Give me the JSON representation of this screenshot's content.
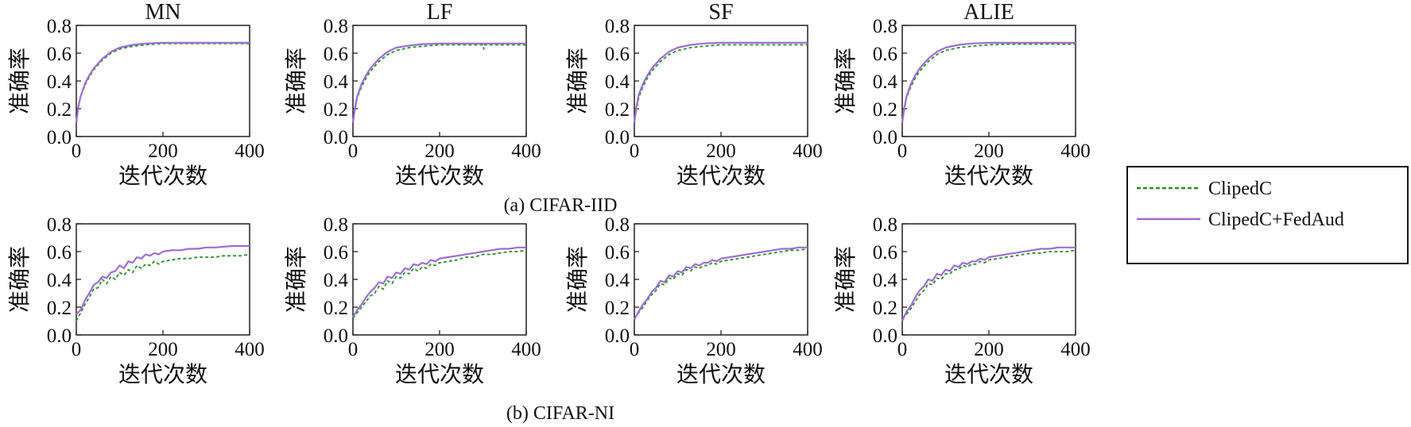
{
  "figure": {
    "captions": [
      "(a) CIFAR-IID",
      "(b) CIFAR-NI"
    ],
    "legend": [
      {
        "label": "ClipedC",
        "color": "#2e8b2e",
        "dash": "dashed"
      },
      {
        "label": "ClipedC+FedAud",
        "color": "#9b6fce",
        "dash": "solid"
      }
    ]
  },
  "chart_data": [
    {
      "type": "line",
      "group": "(a) CIFAR-IID",
      "title": "MN",
      "xlabel": "迭代次数",
      "ylabel": "准确率",
      "xlim": [
        0,
        400
      ],
      "ylim": [
        0,
        0.8
      ],
      "xticks": [
        "0",
        "200",
        "400"
      ],
      "yticks": [
        "0.0",
        "0.2",
        "0.4",
        "0.6",
        "0.8"
      ],
      "x": [
        0,
        5,
        10,
        20,
        30,
        40,
        60,
        80,
        100,
        130,
        160,
        200,
        250,
        300,
        350,
        400
      ],
      "series": [
        {
          "name": "ClipedC",
          "values": [
            0.1,
            0.21,
            0.29,
            0.37,
            0.43,
            0.48,
            0.55,
            0.6,
            0.63,
            0.65,
            0.66,
            0.67,
            0.67,
            0.67,
            0.67,
            0.67
          ]
        },
        {
          "name": "ClipedC+FedAud",
          "values": [
            0.1,
            0.22,
            0.29,
            0.38,
            0.44,
            0.49,
            0.56,
            0.61,
            0.64,
            0.66,
            0.67,
            0.675,
            0.675,
            0.675,
            0.675,
            0.675
          ]
        }
      ]
    },
    {
      "type": "line",
      "group": "(a) CIFAR-IID",
      "title": "LF",
      "xlabel": "迭代次数",
      "ylabel": "准确率",
      "xlim": [
        0,
        400
      ],
      "ylim": [
        0,
        0.8
      ],
      "xticks": [
        "0",
        "200",
        "400"
      ],
      "yticks": [
        "0.0",
        "0.2",
        "0.4",
        "0.6",
        "0.8"
      ],
      "x": [
        0,
        5,
        10,
        20,
        30,
        40,
        60,
        80,
        100,
        130,
        160,
        200,
        250,
        300,
        302,
        304,
        350,
        400
      ],
      "series": [
        {
          "name": "ClipedC",
          "values": [
            0.1,
            0.2,
            0.28,
            0.36,
            0.42,
            0.47,
            0.54,
            0.59,
            0.62,
            0.64,
            0.65,
            0.66,
            0.66,
            0.66,
            0.63,
            0.66,
            0.66,
            0.66
          ]
        },
        {
          "name": "ClipedC+FedAud",
          "values": [
            0.1,
            0.21,
            0.29,
            0.38,
            0.44,
            0.49,
            0.56,
            0.61,
            0.64,
            0.655,
            0.665,
            0.67,
            0.67,
            0.67,
            0.67,
            0.67,
            0.67,
            0.67
          ]
        }
      ]
    },
    {
      "type": "line",
      "group": "(a) CIFAR-IID",
      "title": "SF",
      "xlabel": "迭代次数",
      "ylabel": "准确率",
      "xlim": [
        0,
        400
      ],
      "ylim": [
        0,
        0.8
      ],
      "xticks": [
        "0",
        "200",
        "400"
      ],
      "yticks": [
        "0.0",
        "0.2",
        "0.4",
        "0.6",
        "0.8"
      ],
      "x": [
        0,
        5,
        10,
        20,
        30,
        40,
        60,
        80,
        100,
        130,
        160,
        200,
        250,
        300,
        350,
        400
      ],
      "series": [
        {
          "name": "ClipedC",
          "values": [
            0.1,
            0.2,
            0.28,
            0.36,
            0.42,
            0.47,
            0.54,
            0.59,
            0.62,
            0.64,
            0.65,
            0.66,
            0.66,
            0.66,
            0.66,
            0.66
          ]
        },
        {
          "name": "ClipedC+FedAud",
          "values": [
            0.1,
            0.22,
            0.3,
            0.38,
            0.44,
            0.49,
            0.56,
            0.61,
            0.64,
            0.66,
            0.67,
            0.675,
            0.675,
            0.675,
            0.675,
            0.675
          ]
        }
      ]
    },
    {
      "type": "line",
      "group": "(a) CIFAR-IID",
      "title": "ALIE",
      "xlabel": "迭代次数",
      "ylabel": "准确率",
      "xlim": [
        0,
        400
      ],
      "ylim": [
        0,
        0.8
      ],
      "xticks": [
        "0",
        "200",
        "400"
      ],
      "yticks": [
        "0.0",
        "0.2",
        "0.4",
        "0.6",
        "0.8"
      ],
      "x": [
        0,
        5,
        10,
        20,
        30,
        40,
        60,
        80,
        100,
        130,
        160,
        200,
        250,
        300,
        350,
        400
      ],
      "series": [
        {
          "name": "ClipedC",
          "values": [
            0.1,
            0.2,
            0.28,
            0.36,
            0.42,
            0.47,
            0.54,
            0.59,
            0.62,
            0.64,
            0.65,
            0.66,
            0.665,
            0.665,
            0.665,
            0.665
          ]
        },
        {
          "name": "ClipedC+FedAud",
          "values": [
            0.1,
            0.21,
            0.29,
            0.38,
            0.44,
            0.49,
            0.56,
            0.61,
            0.64,
            0.66,
            0.67,
            0.675,
            0.675,
            0.675,
            0.675,
            0.675
          ]
        }
      ]
    },
    {
      "type": "line",
      "group": "(b) CIFAR-NI",
      "title": "",
      "xlabel": "迭代次数",
      "ylabel": "准确率",
      "xlim": [
        0,
        400
      ],
      "ylim": [
        0,
        0.8
      ],
      "xticks": [
        "0",
        "200",
        "400"
      ],
      "yticks": [
        "0.0",
        "0.2",
        "0.4",
        "0.6",
        "0.8"
      ],
      "x": [
        0,
        10,
        20,
        30,
        40,
        50,
        60,
        70,
        80,
        90,
        100,
        110,
        120,
        130,
        140,
        150,
        160,
        170,
        180,
        190,
        200,
        220,
        240,
        260,
        280,
        300,
        320,
        340,
        360,
        380,
        400
      ],
      "series": [
        {
          "name": "ClipedC",
          "values": [
            0.1,
            0.16,
            0.22,
            0.27,
            0.33,
            0.34,
            0.4,
            0.37,
            0.42,
            0.4,
            0.45,
            0.43,
            0.47,
            0.45,
            0.5,
            0.48,
            0.51,
            0.5,
            0.53,
            0.51,
            0.53,
            0.54,
            0.55,
            0.55,
            0.56,
            0.56,
            0.56,
            0.57,
            0.57,
            0.57,
            0.58
          ]
        },
        {
          "name": "ClipedC+FedAud",
          "values": [
            0.15,
            0.18,
            0.25,
            0.3,
            0.36,
            0.38,
            0.42,
            0.41,
            0.45,
            0.46,
            0.5,
            0.48,
            0.53,
            0.52,
            0.56,
            0.55,
            0.58,
            0.57,
            0.59,
            0.58,
            0.6,
            0.61,
            0.61,
            0.62,
            0.62,
            0.63,
            0.63,
            0.635,
            0.64,
            0.64,
            0.64
          ]
        }
      ]
    },
    {
      "type": "line",
      "group": "(b) CIFAR-NI",
      "title": "",
      "xlabel": "迭代次数",
      "ylabel": "准确率",
      "xlim": [
        0,
        400
      ],
      "ylim": [
        0,
        0.8
      ],
      "xticks": [
        "0",
        "200",
        "400"
      ],
      "yticks": [
        "0.0",
        "0.2",
        "0.4",
        "0.6",
        "0.8"
      ],
      "x": [
        0,
        10,
        20,
        30,
        40,
        50,
        60,
        70,
        80,
        90,
        100,
        110,
        120,
        130,
        140,
        150,
        160,
        170,
        180,
        190,
        200,
        220,
        240,
        260,
        280,
        300,
        320,
        340,
        360,
        380,
        400
      ],
      "series": [
        {
          "name": "ClipedC",
          "values": [
            0.12,
            0.16,
            0.2,
            0.24,
            0.28,
            0.3,
            0.35,
            0.33,
            0.39,
            0.37,
            0.42,
            0.41,
            0.45,
            0.44,
            0.48,
            0.46,
            0.49,
            0.48,
            0.51,
            0.5,
            0.52,
            0.53,
            0.54,
            0.56,
            0.56,
            0.58,
            0.58,
            0.59,
            0.6,
            0.6,
            0.61
          ]
        },
        {
          "name": "ClipedC+FedAud",
          "values": [
            0.13,
            0.18,
            0.22,
            0.27,
            0.31,
            0.34,
            0.38,
            0.37,
            0.42,
            0.41,
            0.45,
            0.44,
            0.48,
            0.47,
            0.51,
            0.5,
            0.52,
            0.51,
            0.54,
            0.53,
            0.55,
            0.56,
            0.57,
            0.58,
            0.59,
            0.6,
            0.61,
            0.62,
            0.62,
            0.63,
            0.63
          ]
        }
      ]
    },
    {
      "type": "line",
      "group": "(b) CIFAR-NI",
      "title": "",
      "xlabel": "迭代次数",
      "ylabel": "准确率",
      "xlim": [
        0,
        400
      ],
      "ylim": [
        0,
        0.8
      ],
      "xticks": [
        "0",
        "200",
        "400"
      ],
      "yticks": [
        "0.0",
        "0.2",
        "0.4",
        "0.6",
        "0.8"
      ],
      "x": [
        0,
        10,
        20,
        30,
        40,
        50,
        60,
        70,
        80,
        90,
        100,
        110,
        120,
        130,
        140,
        150,
        160,
        170,
        180,
        190,
        200,
        220,
        240,
        260,
        280,
        300,
        320,
        340,
        360,
        380,
        400
      ],
      "series": [
        {
          "name": "ClipedC",
          "values": [
            0.12,
            0.16,
            0.2,
            0.25,
            0.29,
            0.32,
            0.37,
            0.36,
            0.41,
            0.4,
            0.44,
            0.43,
            0.47,
            0.46,
            0.49,
            0.48,
            0.5,
            0.5,
            0.52,
            0.51,
            0.53,
            0.54,
            0.55,
            0.56,
            0.57,
            0.58,
            0.59,
            0.6,
            0.61,
            0.61,
            0.62
          ]
        },
        {
          "name": "ClipedC+FedAud",
          "values": [
            0.11,
            0.17,
            0.22,
            0.26,
            0.31,
            0.34,
            0.39,
            0.38,
            0.43,
            0.42,
            0.46,
            0.45,
            0.49,
            0.48,
            0.51,
            0.5,
            0.52,
            0.52,
            0.54,
            0.53,
            0.55,
            0.56,
            0.57,
            0.58,
            0.59,
            0.6,
            0.61,
            0.62,
            0.62,
            0.63,
            0.63
          ]
        }
      ]
    },
    {
      "type": "line",
      "group": "(b) CIFAR-NI",
      "title": "",
      "xlabel": "迭代次数",
      "ylabel": "准确率",
      "xlim": [
        0,
        400
      ],
      "ylim": [
        0,
        0.8
      ],
      "xticks": [
        "0",
        "200",
        "400"
      ],
      "yticks": [
        "0.0",
        "0.2",
        "0.4",
        "0.6",
        "0.8"
      ],
      "x": [
        0,
        10,
        20,
        30,
        40,
        50,
        60,
        70,
        80,
        90,
        100,
        110,
        120,
        130,
        140,
        150,
        160,
        170,
        180,
        190,
        200,
        220,
        240,
        260,
        280,
        300,
        320,
        340,
        360,
        380,
        400
      ],
      "series": [
        {
          "name": "ClipedC",
          "values": [
            0.12,
            0.15,
            0.19,
            0.24,
            0.29,
            0.32,
            0.37,
            0.36,
            0.41,
            0.4,
            0.44,
            0.44,
            0.47,
            0.47,
            0.5,
            0.49,
            0.51,
            0.51,
            0.53,
            0.52,
            0.54,
            0.55,
            0.56,
            0.57,
            0.58,
            0.59,
            0.59,
            0.6,
            0.6,
            0.6,
            0.61
          ]
        },
        {
          "name": "ClipedC+FedAud",
          "values": [
            0.1,
            0.17,
            0.21,
            0.27,
            0.32,
            0.35,
            0.4,
            0.39,
            0.44,
            0.43,
            0.47,
            0.46,
            0.5,
            0.49,
            0.52,
            0.51,
            0.53,
            0.53,
            0.55,
            0.54,
            0.56,
            0.57,
            0.58,
            0.59,
            0.6,
            0.61,
            0.62,
            0.62,
            0.63,
            0.63,
            0.63
          ]
        }
      ]
    }
  ]
}
